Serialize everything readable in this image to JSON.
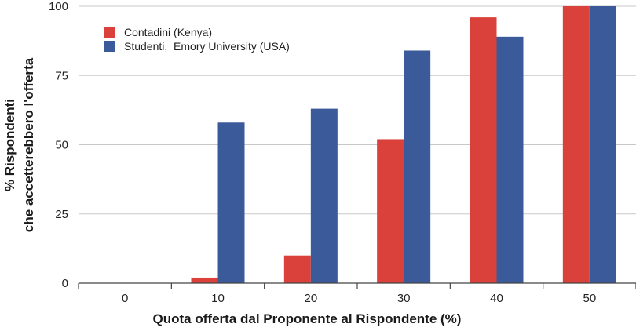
{
  "chart_data": {
    "type": "bar",
    "categories": [
      "0",
      "10",
      "20",
      "30",
      "40",
      "50"
    ],
    "series": [
      {
        "name": "Contadini (Kenya)",
        "color": "#d9413a",
        "values": [
          0,
          2,
          10,
          52,
          96,
          100
        ]
      },
      {
        "name": "Studenti,  Emory University (USA)",
        "color": "#3a5a99",
        "values": [
          0,
          58,
          63,
          84,
          89,
          100
        ]
      }
    ],
    "xlabel": "Quota offerta dal Proponente al Rispondente (%)",
    "ylabel_lines": [
      "% Rispondenti",
      "che accetterebbero l'offerta"
    ],
    "yticks": [
      0,
      25,
      50,
      75,
      100
    ],
    "ylim": [
      0,
      100
    ],
    "grid": true,
    "legend_position": "top-left"
  }
}
